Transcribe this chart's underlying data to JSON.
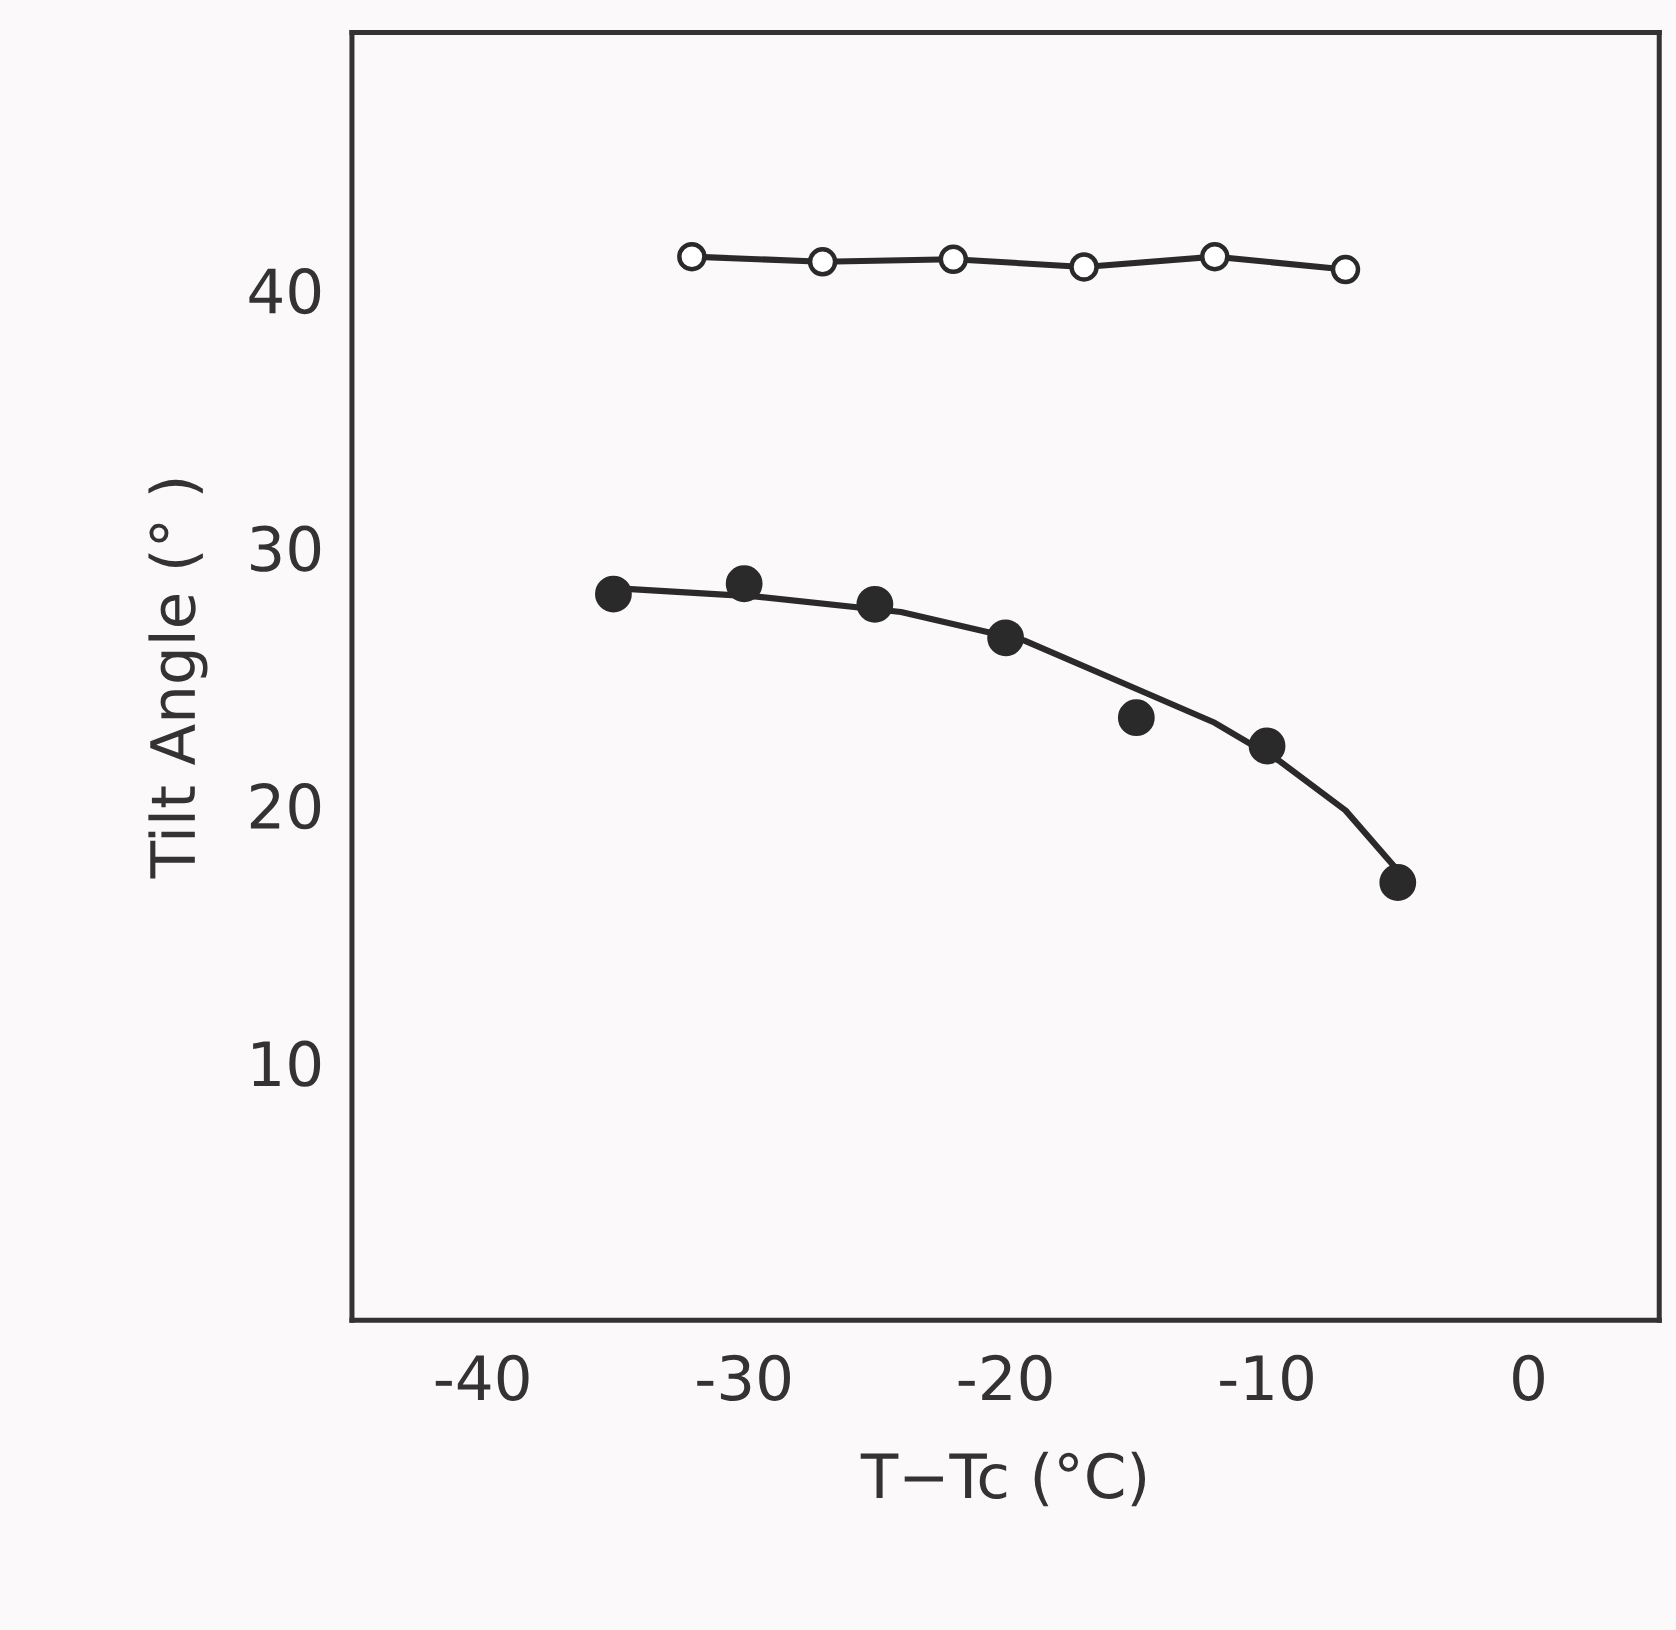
{
  "chart_data": {
    "type": "scatter",
    "xlabel": "T−Tc (°C)",
    "ylabel": "Tilt Angle (° )",
    "xlim": [
      -45,
      5
    ],
    "xticks": [
      -40,
      -30,
      -20,
      -10,
      0
    ],
    "ylim": [
      0,
      50
    ],
    "yticks": [
      10,
      20,
      30,
      40
    ],
    "grid": false,
    "legend": false,
    "series": [
      {
        "type": "line",
        "marker": "circle",
        "color": "#2a2a2a",
        "x": [
          -32,
          -27,
          -22,
          -17,
          -12,
          -7
        ],
        "values": [
          41.3,
          41.1,
          41.2,
          40.9,
          41.3,
          40.8
        ]
      },
      {
        "marker": "circle",
        "color": "#2a2a2a",
        "x": [
          -35,
          -30,
          -25,
          -20,
          -15,
          -10,
          -5
        ],
        "values": [
          28.2,
          28.6,
          27.8,
          26.5,
          23.4,
          22.3,
          17.0
        ]
      },
      {
        "type": "line",
        "marker": "none",
        "color": "#2a2a2a",
        "x": [
          -34.5,
          -29.5,
          -24,
          -19.3,
          -14.5,
          -12,
          -9.5,
          -7,
          -4.6
        ],
        "values": [
          28.4,
          28.1,
          27.5,
          26.4,
          24.3,
          23.2,
          21.7,
          19.8,
          17.0
        ]
      }
    ]
  }
}
